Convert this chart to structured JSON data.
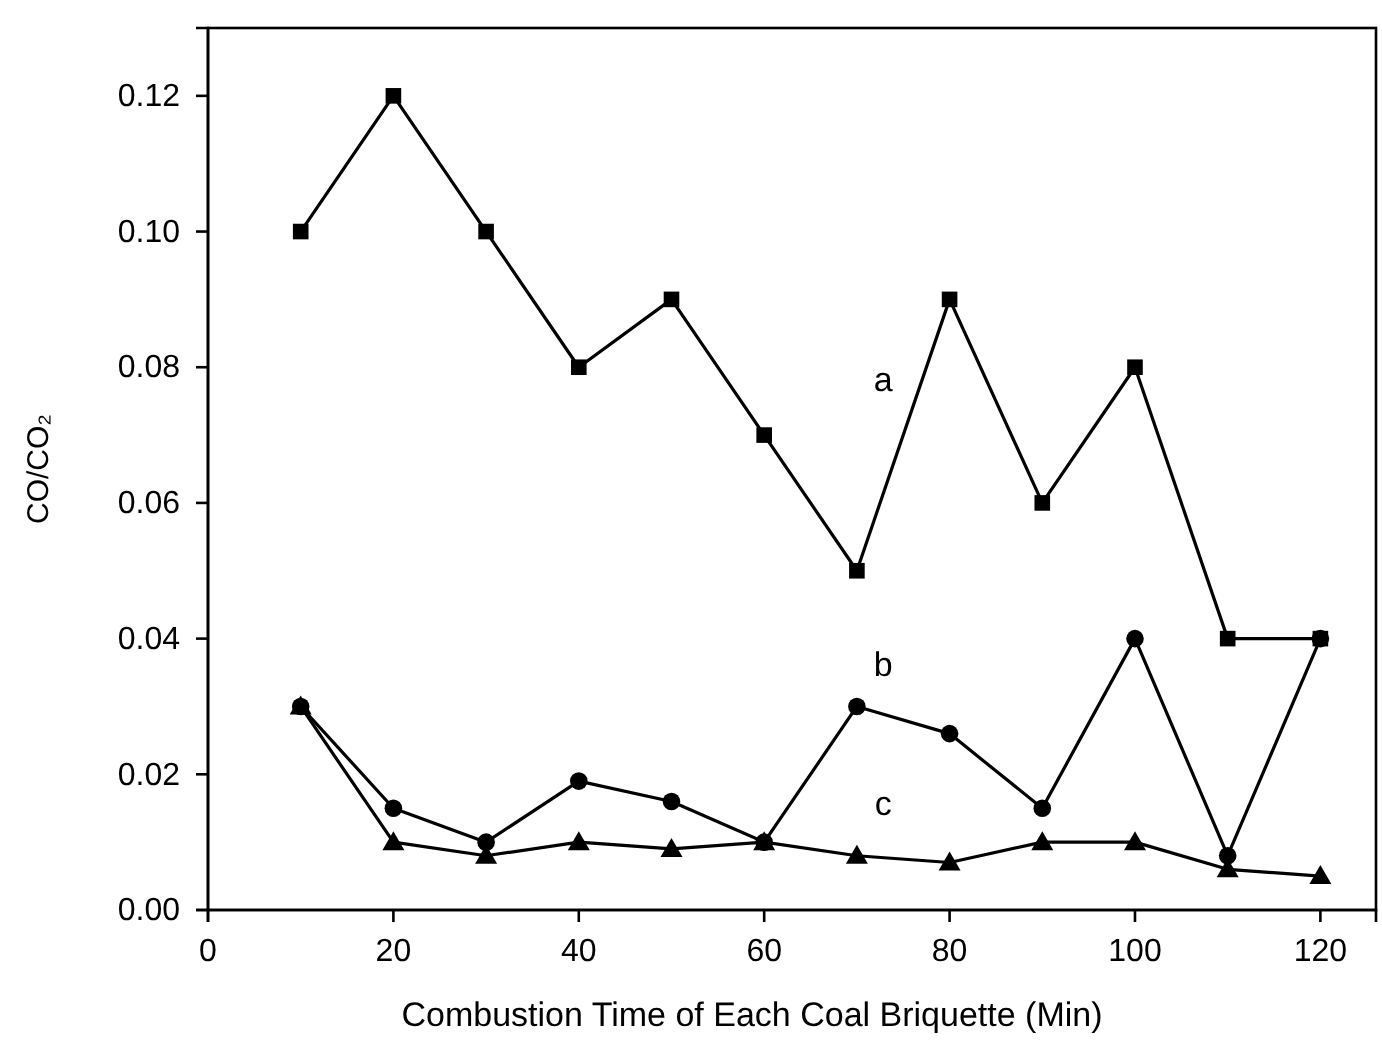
{
  "chart_data": {
    "type": "line",
    "xlabel": "Combustion Time of Each Coal Briquette (Min)",
    "ylabel": "CO/CO₂",
    "x": [
      10,
      20,
      30,
      40,
      50,
      60,
      70,
      80,
      90,
      100,
      110,
      120
    ],
    "xlim": [
      0,
      126
    ],
    "xticks": [
      0,
      20,
      40,
      60,
      80,
      100,
      120
    ],
    "ylim": [
      0,
      0.13
    ],
    "yticks": [
      {
        "value": 0,
        "label": "0.00"
      },
      {
        "value": 0.02,
        "label": "0.02"
      },
      {
        "value": 0.04,
        "label": "0.04"
      },
      {
        "value": 0.06,
        "label": "0.06"
      },
      {
        "value": 0.08,
        "label": "0.08"
      },
      {
        "value": 0.1,
        "label": "0.10"
      },
      {
        "value": 0.12,
        "label": "0.12"
      }
    ],
    "series": [
      {
        "name": "a",
        "color": "#000000",
        "marker": "square",
        "values": [
          0.1,
          0.12,
          0.1,
          0.08,
          0.09,
          0.07,
          0.05,
          0.09,
          0.06,
          0.08,
          0.04,
          0.04
        ]
      },
      {
        "name": "b",
        "color": "#000000",
        "marker": "circle",
        "values": [
          0.03,
          0.015,
          0.01,
          0.019,
          0.016,
          0.01,
          0.03,
          0.026,
          0.015,
          0.04,
          0.008,
          0.04
        ]
      },
      {
        "name": "c",
        "color": "#000000",
        "marker": "triangle",
        "values": [
          0.03,
          0.01,
          0.008,
          0.01,
          0.009,
          0.01,
          0.008,
          0.007,
          0.01,
          0.01,
          0.006,
          0.005
        ]
      }
    ],
    "grid": false
  }
}
